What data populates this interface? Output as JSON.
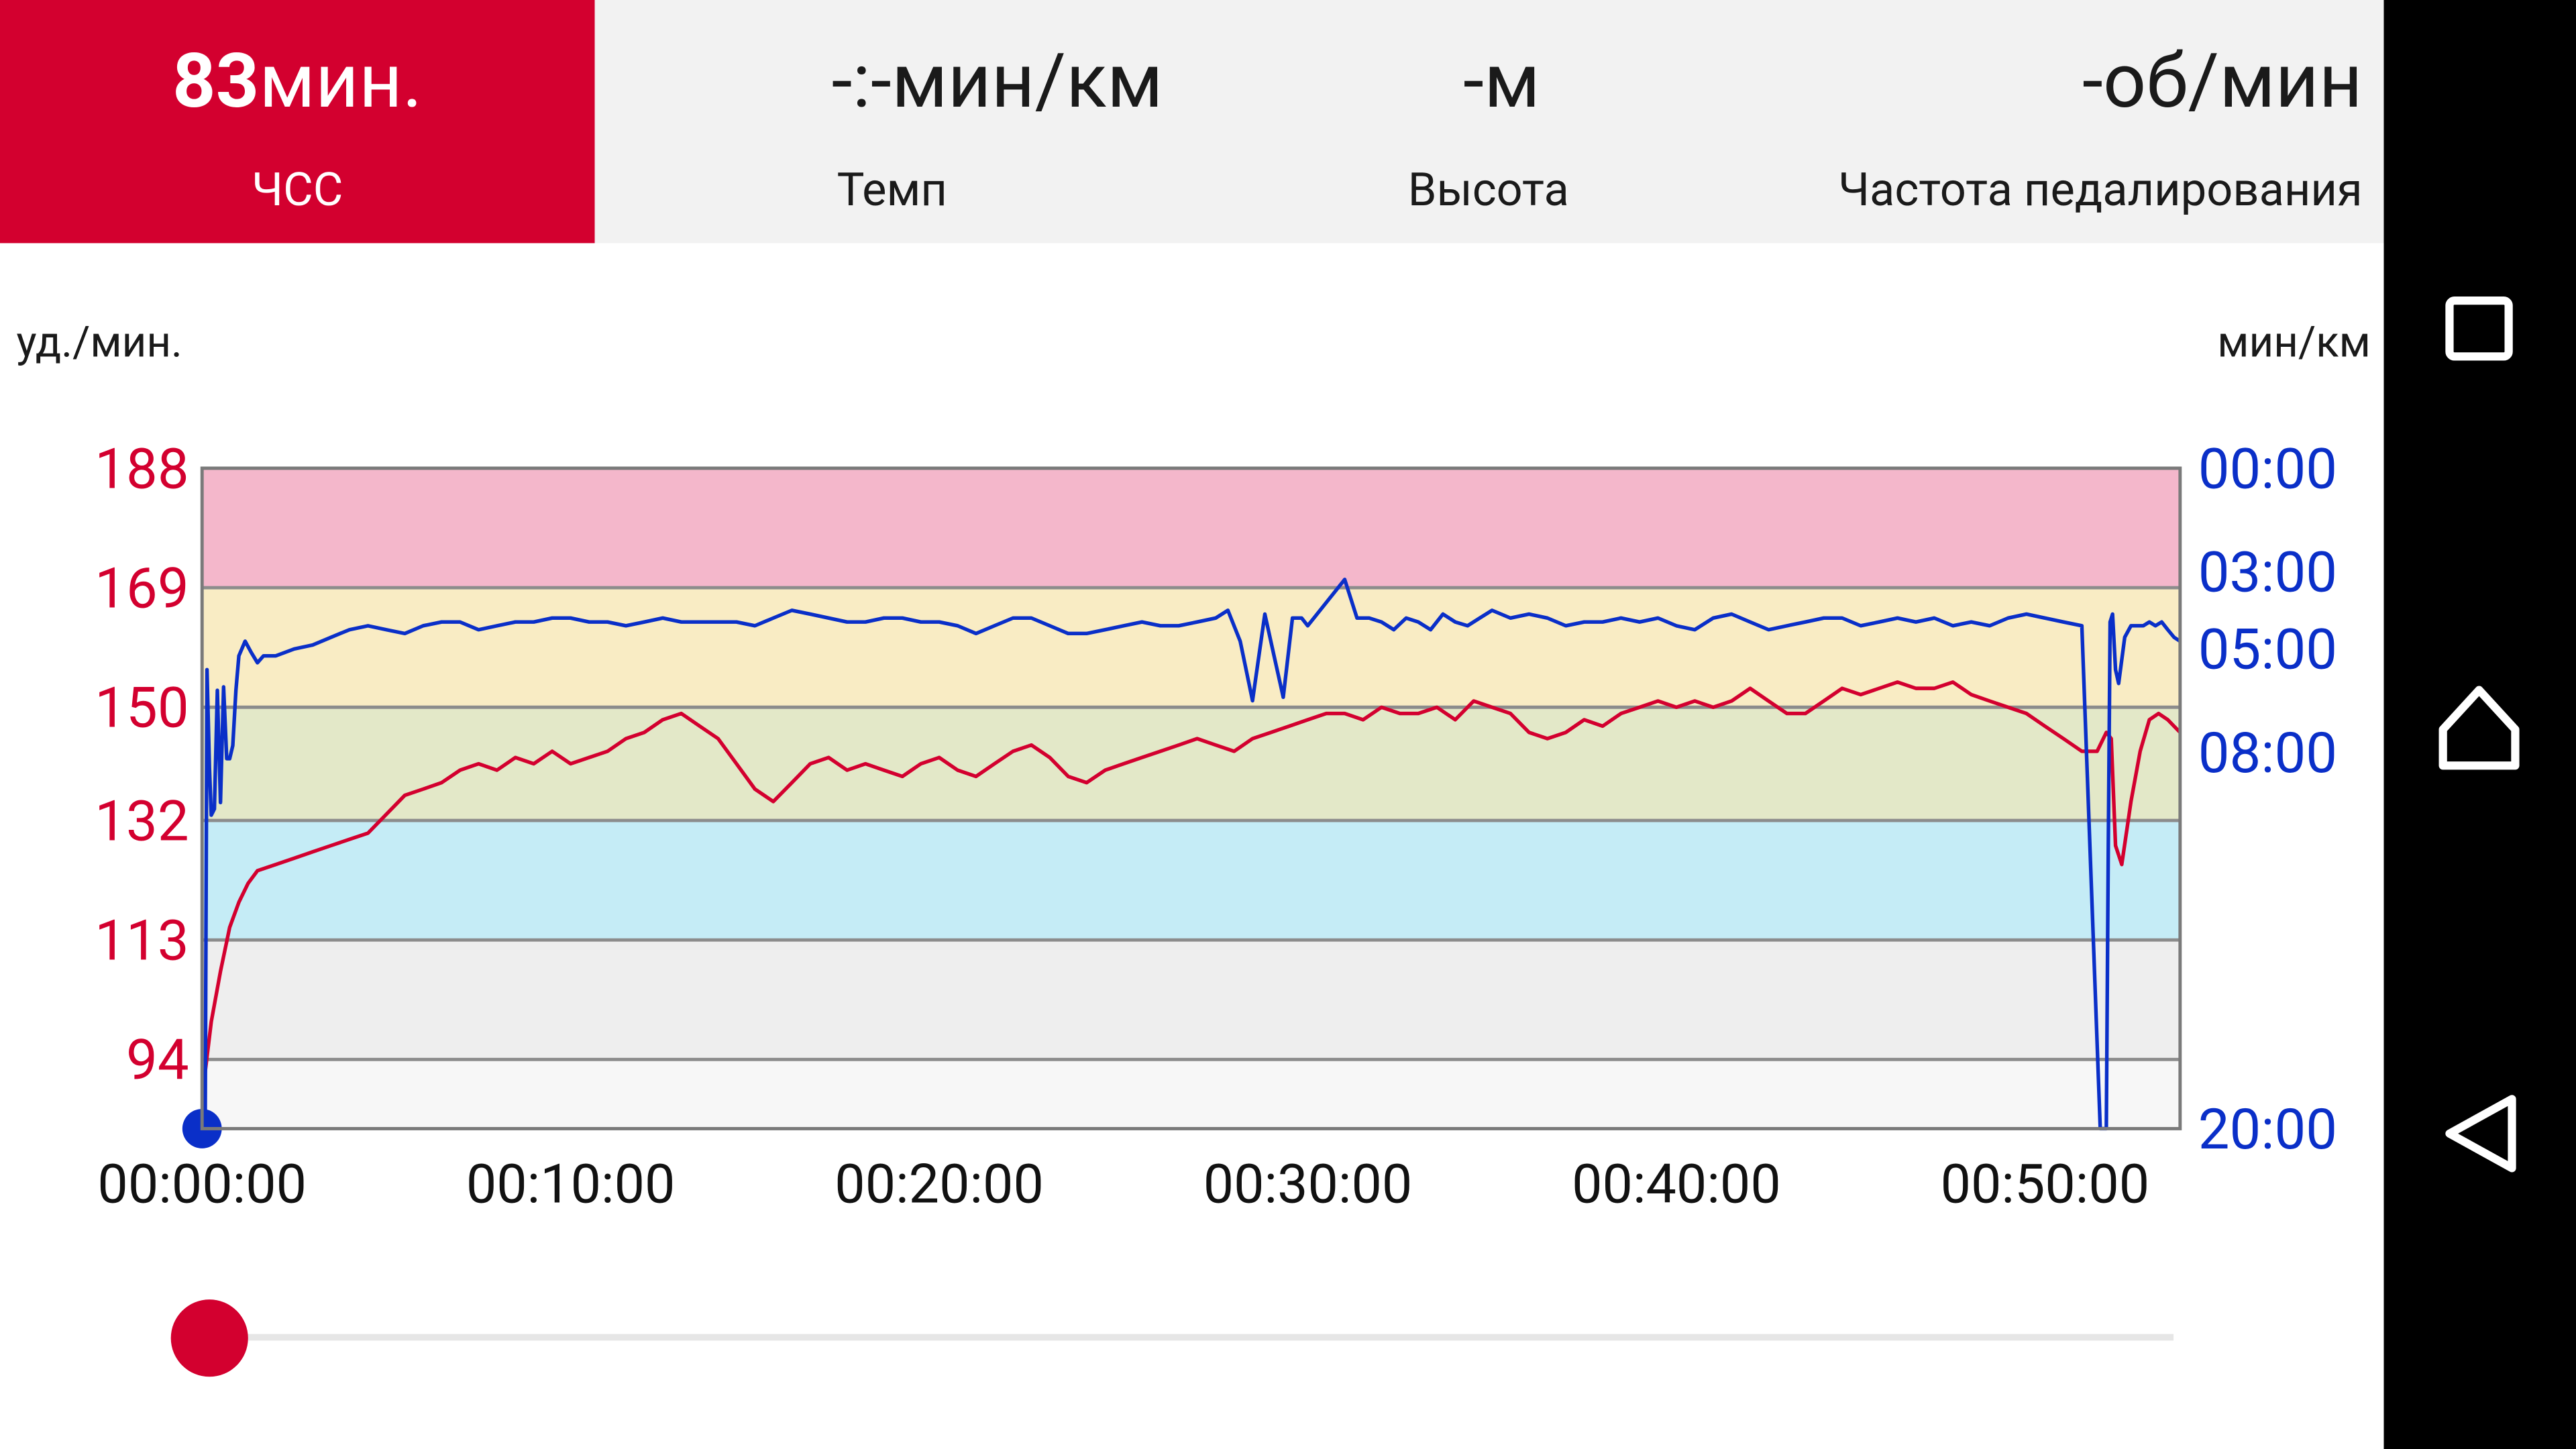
{
  "tabs": [
    {
      "value_num": "83",
      "value_unit": "мин.",
      "label": "ЧСС",
      "active": true
    },
    {
      "value": "-:-мин/км",
      "label": "Темп",
      "active": false
    },
    {
      "value": "-м",
      "label": "Высота",
      "active": false
    },
    {
      "value": "-об/мин",
      "label": "Частота педалирования",
      "active": false
    }
  ],
  "units": {
    "left": "уд./мин.",
    "right": "мин/км"
  },
  "colors": {
    "hr": "#d3002f",
    "pace": "#0a2fc8",
    "accent": "#d3002f",
    "zone5": "#f4b7cb",
    "zone4": "#f9ecc4",
    "zone3": "#e3e8c8",
    "zone2": "#c5ecf6",
    "zone1": "#eeeeee",
    "zone0": "#f7f7f7"
  },
  "nav_icons": [
    "overview-square-icon",
    "home-icon",
    "back-triangle-icon"
  ],
  "chart_data": {
    "type": "line",
    "x_unit": "hh:mm:ss",
    "x_ticks": [
      "00:00:00",
      "00:10:00",
      "00:20:00",
      "00:30:00",
      "00:40:00",
      "00:50:00"
    ],
    "x_tick_values": [
      0,
      600,
      1200,
      1800,
      2400,
      3000
    ],
    "xlim": [
      0,
      3220
    ],
    "y_left": {
      "label": "уд./мин.",
      "ticks": [
        "188",
        "169",
        "150",
        "132",
        "113",
        "94"
      ],
      "tick_values": [
        188,
        169,
        150,
        132,
        113,
        94
      ],
      "ylim": [
        83,
        188
      ]
    },
    "y_right": {
      "label": "мин/км",
      "ticks": [
        "00:00",
        "03:00",
        "05:00",
        "08:00",
        "20:00"
      ],
      "tick_values": [
        0,
        3,
        5,
        8,
        20
      ]
    },
    "hr_zones": [
      {
        "from": 169,
        "to": 188,
        "color": "#f4b7cb"
      },
      {
        "from": 150,
        "to": 169,
        "color": "#f9ecc4"
      },
      {
        "from": 132,
        "to": 150,
        "color": "#e3e8c8"
      },
      {
        "from": 113,
        "to": 132,
        "color": "#c5ecf6"
      },
      {
        "from": 94,
        "to": 113,
        "color": "#eeeeee"
      },
      {
        "from": 83,
        "to": 94,
        "color": "#f7f7f7"
      }
    ],
    "series": [
      {
        "axis": "left",
        "x": [
          0,
          5,
          15,
          30,
          45,
          60,
          75,
          90,
          120,
          150,
          180,
          210,
          240,
          270,
          300,
          330,
          360,
          390,
          420,
          450,
          480,
          510,
          540,
          570,
          600,
          630,
          660,
          690,
          720,
          750,
          780,
          810,
          840,
          870,
          900,
          930,
          960,
          990,
          1020,
          1050,
          1080,
          1110,
          1140,
          1170,
          1200,
          1230,
          1260,
          1290,
          1320,
          1350,
          1380,
          1410,
          1440,
          1470,
          1500,
          1530,
          1560,
          1590,
          1620,
          1650,
          1680,
          1710,
          1740,
          1770,
          1800,
          1830,
          1860,
          1890,
          1920,
          1950,
          1980,
          2010,
          2040,
          2070,
          2100,
          2130,
          2160,
          2190,
          2220,
          2250,
          2280,
          2310,
          2340,
          2370,
          2400,
          2430,
          2460,
          2490,
          2520,
          2550,
          2580,
          2610,
          2640,
          2670,
          2700,
          2730,
          2760,
          2790,
          2820,
          2850,
          2880,
          2910,
          2940,
          2970,
          3000,
          3030,
          3060,
          3085,
          3100,
          3108,
          3115,
          3125,
          3140,
          3155,
          3170,
          3185,
          3200,
          3210,
          3220
        ],
        "y": [
          83,
          92,
          100,
          108,
          115,
          119,
          122,
          124,
          125,
          126,
          127,
          128,
          129,
          130,
          133,
          136,
          137,
          138,
          140,
          141,
          140,
          142,
          141,
          143,
          141,
          142,
          143,
          145,
          146,
          148,
          149,
          147,
          145,
          141,
          137,
          135,
          138,
          141,
          142,
          140,
          141,
          140,
          139,
          141,
          142,
          140,
          139,
          141,
          143,
          144,
          142,
          139,
          138,
          140,
          141,
          142,
          143,
          144,
          145,
          144,
          143,
          145,
          146,
          147,
          148,
          149,
          149,
          148,
          150,
          149,
          149,
          150,
          148,
          151,
          150,
          149,
          146,
          145,
          146,
          148,
          147,
          149,
          150,
          151,
          150,
          151,
          150,
          151,
          153,
          151,
          149,
          149,
          151,
          153,
          152,
          153,
          154,
          153,
          153,
          154,
          152,
          151,
          150,
          149,
          147,
          145,
          143,
          143,
          146,
          145,
          128,
          125,
          135,
          143,
          148,
          149,
          148,
          147,
          146
        ]
      },
      {
        "axis": "right",
        "x": [
          0,
          5,
          8,
          12,
          15,
          20,
          25,
          30,
          35,
          40,
          45,
          50,
          55,
          60,
          70,
          80,
          90,
          100,
          120,
          150,
          180,
          210,
          240,
          270,
          300,
          330,
          360,
          390,
          420,
          450,
          480,
          510,
          540,
          570,
          600,
          630,
          660,
          690,
          720,
          750,
          780,
          810,
          840,
          870,
          900,
          930,
          960,
          990,
          1020,
          1050,
          1080,
          1110,
          1140,
          1170,
          1200,
          1230,
          1260,
          1290,
          1320,
          1350,
          1380,
          1410,
          1440,
          1470,
          1500,
          1530,
          1560,
          1590,
          1620,
          1650,
          1670,
          1690,
          1710,
          1730,
          1745,
          1760,
          1775,
          1790,
          1800,
          1820,
          1840,
          1860,
          1880,
          1900,
          1920,
          1940,
          1960,
          1980,
          2000,
          2020,
          2040,
          2060,
          2080,
          2100,
          2130,
          2160,
          2190,
          2220,
          2250,
          2280,
          2310,
          2340,
          2370,
          2400,
          2430,
          2460,
          2490,
          2520,
          2550,
          2580,
          2610,
          2640,
          2670,
          2700,
          2730,
          2760,
          2790,
          2820,
          2850,
          2880,
          2910,
          2940,
          2970,
          3000,
          3030,
          3060,
          3090,
          3100,
          3103,
          3106,
          3110,
          3115,
          3120,
          3130,
          3140,
          3150,
          3160,
          3170,
          3180,
          3190,
          3200,
          3210,
          3220
        ],
        "y": [
          20,
          20,
          5.6,
          8.5,
          10,
          9.8,
          6.2,
          9.6,
          6.1,
          8.2,
          8.2,
          7.8,
          6.2,
          5.2,
          4.8,
          5.1,
          5.4,
          5.2,
          5.2,
          5,
          4.9,
          4.7,
          4.5,
          4.4,
          4.5,
          4.6,
          4.4,
          4.3,
          4.3,
          4.5,
          4.4,
          4.3,
          4.3,
          4.2,
          4.2,
          4.3,
          4.3,
          4.4,
          4.3,
          4.2,
          4.3,
          4.3,
          4.3,
          4.3,
          4.4,
          4.2,
          4,
          4.1,
          4.2,
          4.3,
          4.3,
          4.2,
          4.2,
          4.3,
          4.3,
          4.4,
          4.6,
          4.4,
          4.2,
          4.2,
          4.4,
          4.6,
          4.6,
          4.5,
          4.4,
          4.3,
          4.4,
          4.4,
          4.3,
          4.2,
          4.0,
          4.8,
          6.5,
          4.1,
          5.2,
          6.4,
          4.2,
          4.2,
          4.4,
          4.0,
          3.6,
          3.2,
          4.2,
          4.2,
          4.3,
          4.5,
          4.2,
          4.3,
          4.5,
          4.1,
          4.3,
          4.4,
          4.2,
          4.0,
          4.2,
          4.1,
          4.2,
          4.4,
          4.3,
          4.3,
          4.2,
          4.3,
          4.2,
          4.4,
          4.5,
          4.2,
          4.1,
          4.3,
          4.5,
          4.4,
          4.3,
          4.2,
          4.2,
          4.4,
          4.3,
          4.2,
          4.3,
          4.2,
          4.4,
          4.3,
          4.4,
          4.2,
          4.1,
          4.2,
          4.3,
          4.4,
          20,
          20,
          11,
          4.3,
          4.1,
          5.6,
          6.0,
          4.7,
          4.4,
          4.4,
          4.4,
          4.3,
          4.4,
          4.3,
          4.5,
          4.7,
          4.8
        ]
      }
    ]
  }
}
